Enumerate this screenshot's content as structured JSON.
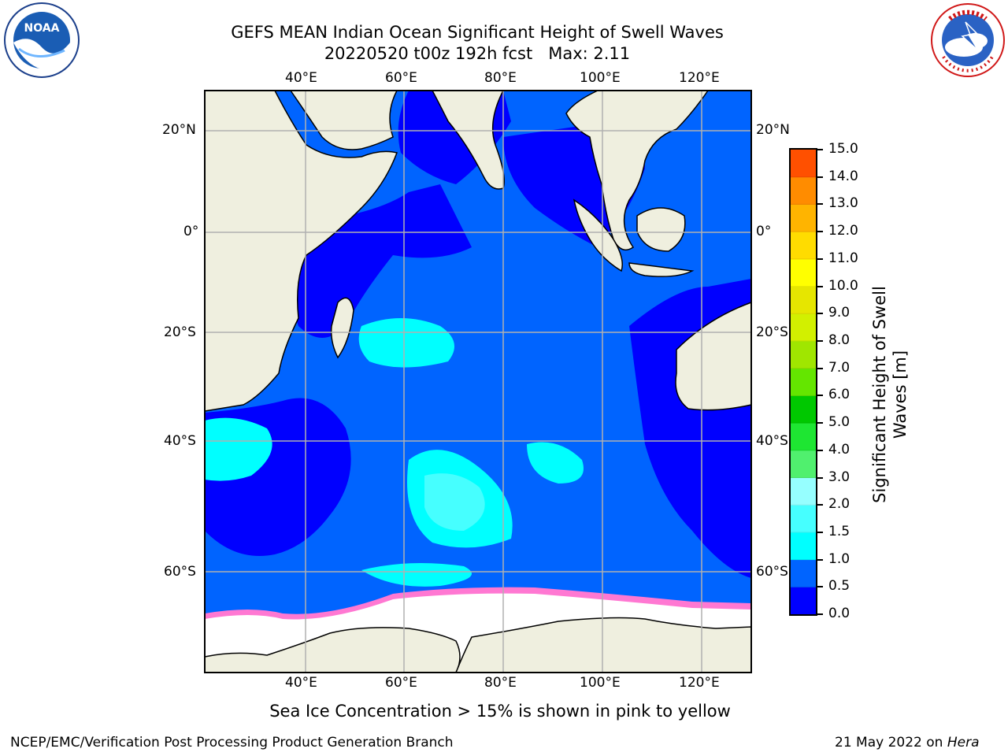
{
  "header": {
    "title_line1": "GEFS MEAN Indian Ocean Significant Height of Swell Waves",
    "title_line2": "20220520 t00z 192h fcst   Max: 2.11"
  },
  "logos": {
    "noaa": {
      "text": "NOAA",
      "ring_text": "NATIONAL OCEANIC AND ATMOSPHERIC ADMINISTRATION · U.S. DEPARTMENT OF COMMERCE"
    },
    "nws": {
      "ring_text": "NATIONAL WEATHER SERVICE"
    }
  },
  "map": {
    "lon_labels": [
      "40°E",
      "60°E",
      "80°E",
      "100°E",
      "120°E"
    ],
    "lat_labels": [
      "20°N",
      "0°",
      "20°S",
      "40°S",
      "60°S"
    ],
    "note": "Sea Ice Concentration > 15% is shown in pink to yellow"
  },
  "colorbar": {
    "title": "Significant Height of Swell Waves [m]",
    "ticks": [
      "15.0",
      "14.0",
      "13.0",
      "12.0",
      "11.0",
      "10.0",
      "9.0",
      "8.0",
      "7.0",
      "6.0",
      "5.0",
      "4.0",
      "3.0",
      "2.0",
      "1.5",
      "1.0",
      "0.5",
      "0.0"
    ],
    "colors_bottom_to_top": [
      "#0000ff",
      "#0064ff",
      "#00ffff",
      "#46ffff",
      "#96ffff",
      "#50f06e",
      "#1ee632",
      "#00c800",
      "#64e600",
      "#a0e600",
      "#d2f000",
      "#e6e600",
      "#ffff00",
      "#ffdc00",
      "#ffb400",
      "#ff8c00",
      "#ff5000",
      "#ff2800",
      "#ff0000"
    ]
  },
  "footer": {
    "left": "NCEP/EMC/Verification Post Processing Product Generation Branch",
    "date": "21 May 2022 on ",
    "machine": "Hera"
  }
}
